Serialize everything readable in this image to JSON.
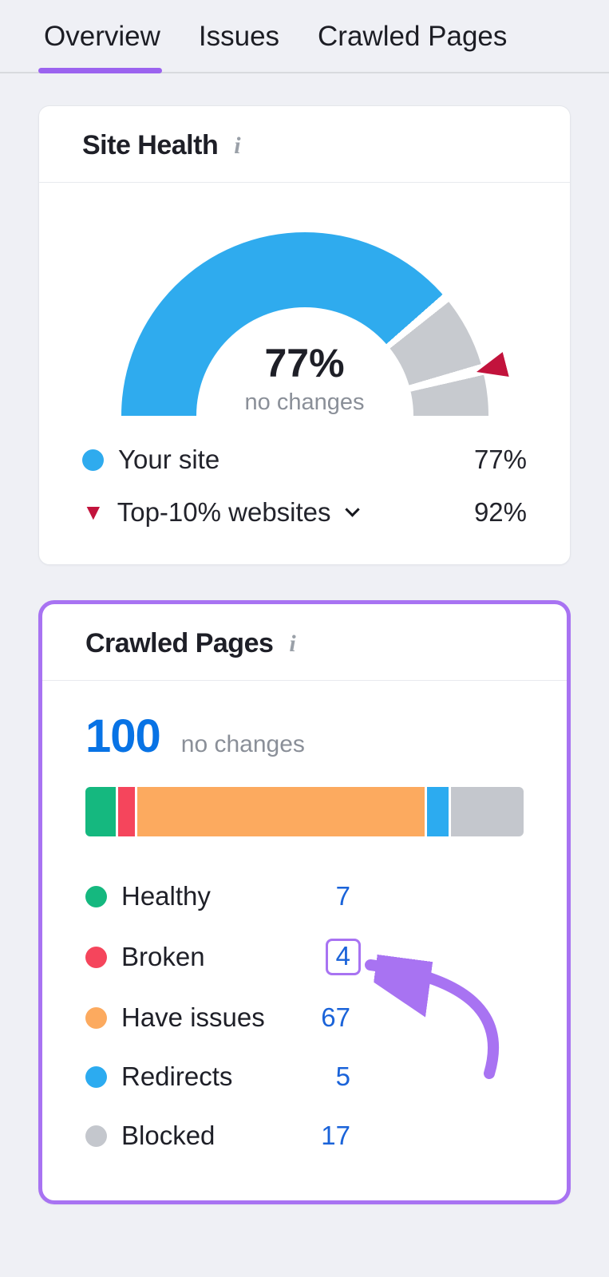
{
  "tabs": {
    "items": [
      {
        "label": "Overview",
        "active": true
      },
      {
        "label": "Issues",
        "active": false
      },
      {
        "label": "Crawled Pages",
        "active": false
      }
    ]
  },
  "site_health": {
    "title": "Site Health",
    "info_icon": "i",
    "center_value": "77%",
    "center_note": "no changes",
    "legend": [
      {
        "label": "Your site",
        "value": "77%"
      },
      {
        "label": "Top-10% websites",
        "value": "92%",
        "marker_glyph": "▼"
      }
    ]
  },
  "crawled_pages": {
    "title": "Crawled Pages",
    "info_icon": "i",
    "total": "100",
    "total_note": "no changes",
    "legend": [
      {
        "label": "Healthy",
        "value": "7"
      },
      {
        "label": "Broken",
        "value": "4",
        "highlighted": true
      },
      {
        "label": "Have issues",
        "value": "67"
      },
      {
        "label": "Redirects",
        "value": "5"
      },
      {
        "label": "Blocked",
        "value": "17"
      }
    ]
  },
  "colors": {
    "accent_purple": "#a873f2",
    "tab_underline": "#9b63ef",
    "gauge_blue": "#2fabee",
    "gauge_gray": "#c7cacf",
    "marker_red": "#c2133c",
    "link_blue": "#1a63d9",
    "total_blue": "#0873e5"
  },
  "chart_data": [
    {
      "type": "gauge",
      "title": "Site Health",
      "value": 77,
      "max": 100,
      "unit": "%",
      "center_label": "77%",
      "center_sublabel": "no changes",
      "remainder_color": "#c7cacf",
      "series": [
        {
          "name": "Your site",
          "value": 77,
          "color": "#2fabee",
          "style": "arc"
        },
        {
          "name": "Top-10% websites",
          "value": 92,
          "color": "#c2133c",
          "style": "marker"
        }
      ]
    },
    {
      "type": "bar",
      "subtype": "stacked-horizontal",
      "title": "Crawled Pages",
      "total": 100,
      "subtitle": "no changes",
      "categories": [
        "Healthy",
        "Broken",
        "Have issues",
        "Redirects",
        "Blocked"
      ],
      "values": [
        7,
        4,
        67,
        5,
        17
      ],
      "colors": [
        "#15b87f",
        "#f5455c",
        "#fcaa5f",
        "#2cabf0",
        "#c4c7cd"
      ]
    }
  ]
}
